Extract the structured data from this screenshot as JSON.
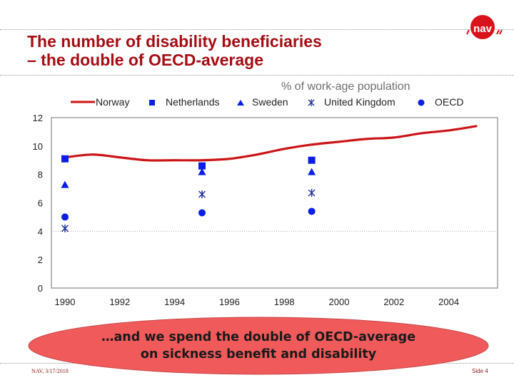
{
  "slide": {
    "title_line1": "The number of disability beneficiaries",
    "title_line2": " – the double of OECD-average",
    "logo_text": "nav",
    "callout_line1": "…and we spend the double of OECD-average",
    "callout_line2": "on sickness benefit and disability",
    "footer_left": "NAV, 3/17/2018",
    "footer_right": "Side 4",
    "colors": {
      "title": "#a50d14",
      "norway_line": "#cc1417",
      "markers": "#0a1ee8",
      "callout_fill": "#f05a5a",
      "logo_red": "#d8131b"
    }
  },
  "chart_data": {
    "type": "line",
    "title": "",
    "subtitle": "% of work-age population",
    "xlabel": "",
    "ylabel": "",
    "xlim": [
      1990,
      2005.5
    ],
    "ylim": [
      0,
      12
    ],
    "yticks": [
      "0",
      "2",
      "4",
      "6",
      "8",
      "10",
      "12"
    ],
    "xticks": [
      "1990",
      "1992",
      "1994",
      "1996",
      "1998",
      "2000",
      "2002",
      "2004"
    ],
    "grid": "single dotted line at 4",
    "legend_position": "top",
    "legend": [
      {
        "name": "Norway",
        "symbol": "line"
      },
      {
        "name": "Netherlands",
        "symbol": "square"
      },
      {
        "name": "Sweden",
        "symbol": "triangle"
      },
      {
        "name": "United Kingdom",
        "symbol": "asterisk"
      },
      {
        "name": "OECD",
        "symbol": "circle"
      }
    ],
    "series": [
      {
        "name": "Norway",
        "type": "line",
        "x": [
          1990,
          1991,
          1992,
          1993,
          1994,
          1995,
          1996,
          1997,
          1998,
          1999,
          2000,
          2001,
          2002,
          2003,
          2004,
          2005
        ],
        "values": [
          9.2,
          9.4,
          9.2,
          9.0,
          9.0,
          9.0,
          9.1,
          9.4,
          9.8,
          10.1,
          10.3,
          10.5,
          10.6,
          10.9,
          11.1,
          11.4
        ]
      },
      {
        "name": "Netherlands",
        "type": "scatter",
        "symbol": "square",
        "x": [
          1990,
          1995,
          1999
        ],
        "values": [
          9.1,
          8.6,
          9.0
        ]
      },
      {
        "name": "Sweden",
        "type": "scatter",
        "symbol": "triangle",
        "x": [
          1990,
          1995,
          1999
        ],
        "values": [
          7.3,
          8.2,
          8.2
        ]
      },
      {
        "name": "United Kingdom",
        "type": "scatter",
        "symbol": "asterisk",
        "x": [
          1990,
          1995,
          1999
        ],
        "values": [
          4.2,
          6.6,
          6.7
        ]
      },
      {
        "name": "OECD",
        "type": "scatter",
        "symbol": "circle",
        "x": [
          1990,
          1995,
          1999
        ],
        "values": [
          5.0,
          5.3,
          5.4
        ]
      }
    ]
  }
}
